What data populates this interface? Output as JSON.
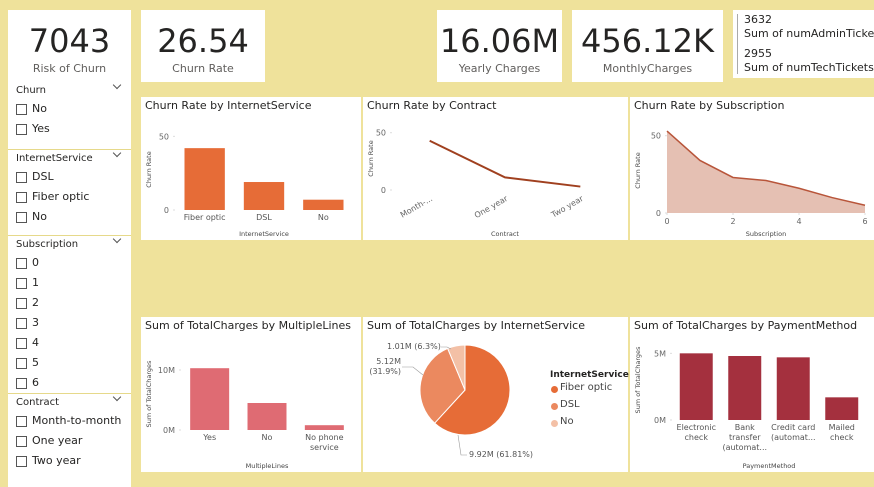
{
  "cards": [
    {
      "value": "7043",
      "label": "Risk of Churn"
    },
    {
      "value": "26.54",
      "label": "Churn Rate"
    },
    {
      "value": "16.06M",
      "label": "Yearly Charges"
    },
    {
      "value": "456.12K",
      "label": "MonthlyCharges"
    }
  ],
  "multi_card": {
    "rows": [
      {
        "value": "3632",
        "label": "Sum of numAdminTickets"
      },
      {
        "value": "2955",
        "label": "Sum of numTechTickets"
      }
    ]
  },
  "slicers": [
    {
      "title": "Churn",
      "options": [
        "No",
        "Yes"
      ]
    },
    {
      "title": "InternetService",
      "options": [
        "DSL",
        "Fiber optic",
        "No"
      ]
    },
    {
      "title": "Subscription",
      "options": [
        "0",
        "1",
        "2",
        "3",
        "4",
        "5",
        "6"
      ]
    },
    {
      "title": "Contract",
      "options": [
        "Month-to-month",
        "One year",
        "Two year"
      ]
    }
  ],
  "chart_data": [
    {
      "type": "bar",
      "title": "Churn Rate by InternetService",
      "x_label": "InternetService",
      "y_label": "Churn Rate",
      "categories": [
        "Fiber optic",
        "DSL",
        "No"
      ],
      "values": [
        42,
        19,
        7
      ],
      "color": "#e66c37",
      "ylim": [
        0,
        55
      ],
      "yticks": [
        0,
        50
      ]
    },
    {
      "type": "line",
      "title": "Churn Rate by Contract",
      "x_label": "Contract",
      "y_label": "Churn Rate",
      "categories": [
        "Month-...",
        "One year",
        "Two year"
      ],
      "values": [
        43,
        11,
        3
      ],
      "color": "#a0401f",
      "ylim": [
        0,
        55
      ],
      "yticks": [
        0,
        50
      ]
    },
    {
      "type": "area",
      "title": "Churn Rate by Subscription",
      "x_label": "Subscription",
      "y_label": "Churn Rate",
      "x": [
        0,
        1,
        2,
        3,
        4,
        5,
        6
      ],
      "values": [
        53,
        34,
        23,
        21,
        16,
        10,
        5
      ],
      "color": "#b8553a",
      "xlim": [
        0,
        6
      ],
      "xticks": [
        0,
        2,
        4,
        6
      ],
      "ylim": [
        0,
        55
      ],
      "yticks": [
        0,
        50
      ]
    },
    {
      "type": "bar",
      "title": "Sum of TotalCharges by MultipleLines",
      "x_label": "MultipleLines",
      "y_label": "Sum of TotalCharges",
      "categories": [
        "Yes",
        "No",
        "No phone service"
      ],
      "values": [
        10300000,
        4500000,
        800000
      ],
      "color": "#df6b73",
      "ylim": [
        0,
        12000000
      ],
      "yticks": [
        {
          "value": 0,
          "label": "0M"
        },
        {
          "value": 10000000,
          "label": "10M"
        }
      ]
    },
    {
      "type": "pie",
      "title": "Sum of TotalCharges by InternetService",
      "legend_title": "InternetService",
      "categories": [
        "Fiber optic",
        "DSL",
        "No"
      ],
      "values": [
        9920000,
        5120000,
        1010000
      ],
      "value_labels": [
        "9.92M (61.81%)",
        "5.12M (31.9%)",
        "1.01M (6.3%)"
      ],
      "colors": [
        "#e66c37",
        "#eb895f",
        "#f3c0a6"
      ]
    },
    {
      "type": "bar",
      "title": "Sum of TotalCharges by PaymentMethod",
      "x_label": "PaymentMethod",
      "y_label": "Sum of TotalCharges",
      "categories": [
        "Electronic check",
        "Bank transfer (automat...",
        "Credit card (automat...",
        "Mailed check"
      ],
      "values": [
        5000000,
        4800000,
        4700000,
        1700000
      ],
      "color": "#a4303e",
      "ylim": [
        0,
        6000000
      ],
      "yticks": [
        {
          "value": 0,
          "label": "0M"
        },
        {
          "value": 5000000,
          "label": "5M"
        }
      ]
    }
  ]
}
